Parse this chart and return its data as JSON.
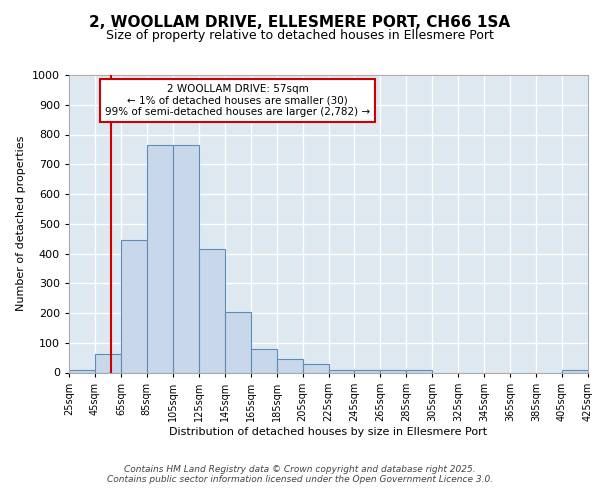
{
  "title_line1": "2, WOOLLAM DRIVE, ELLESMERE PORT, CH66 1SA",
  "title_line2": "Size of property relative to detached houses in Ellesmere Port",
  "xlabel": "Distribution of detached houses by size in Ellesmere Port",
  "ylabel": "Number of detached properties",
  "bin_edges": [
    25,
    45,
    65,
    85,
    105,
    125,
    145,
    165,
    185,
    205,
    225,
    245,
    265,
    285,
    305,
    325,
    345,
    365,
    385,
    405,
    425
  ],
  "bin_values": [
    10,
    63,
    445,
    765,
    765,
    415,
    205,
    78,
    45,
    28,
    10,
    10,
    10,
    10,
    0,
    0,
    0,
    0,
    0,
    8
  ],
  "bar_color": "#c8d8ea",
  "bar_edgecolor": "#5b8db8",
  "property_size": 57,
  "red_line_color": "#cc0000",
  "annotation_line1": "2 WOOLLAM DRIVE: 57sqm",
  "annotation_line2": "← 1% of detached houses are smaller (30)",
  "annotation_line3": "99% of semi-detached houses are larger (2,782) →",
  "annotation_box_color": "#ffffff",
  "annotation_box_edgecolor": "#cc0000",
  "ylim": [
    0,
    1000
  ],
  "yticks": [
    0,
    100,
    200,
    300,
    400,
    500,
    600,
    700,
    800,
    900,
    1000
  ],
  "background_color": "#dde8f0",
  "grid_color": "#ffffff",
  "footer_line1": "Contains HM Land Registry data © Crown copyright and database right 2025.",
  "footer_line2": "Contains public sector information licensed under the Open Government Licence 3.0.",
  "tick_labels": [
    "25sqm",
    "45sqm",
    "65sqm",
    "85sqm",
    "105sqm",
    "125sqm",
    "145sqm",
    "165sqm",
    "185sqm",
    "205sqm",
    "225sqm",
    "245sqm",
    "265sqm",
    "285sqm",
    "305sqm",
    "325sqm",
    "345sqm",
    "365sqm",
    "385sqm",
    "405sqm",
    "425sqm"
  ]
}
